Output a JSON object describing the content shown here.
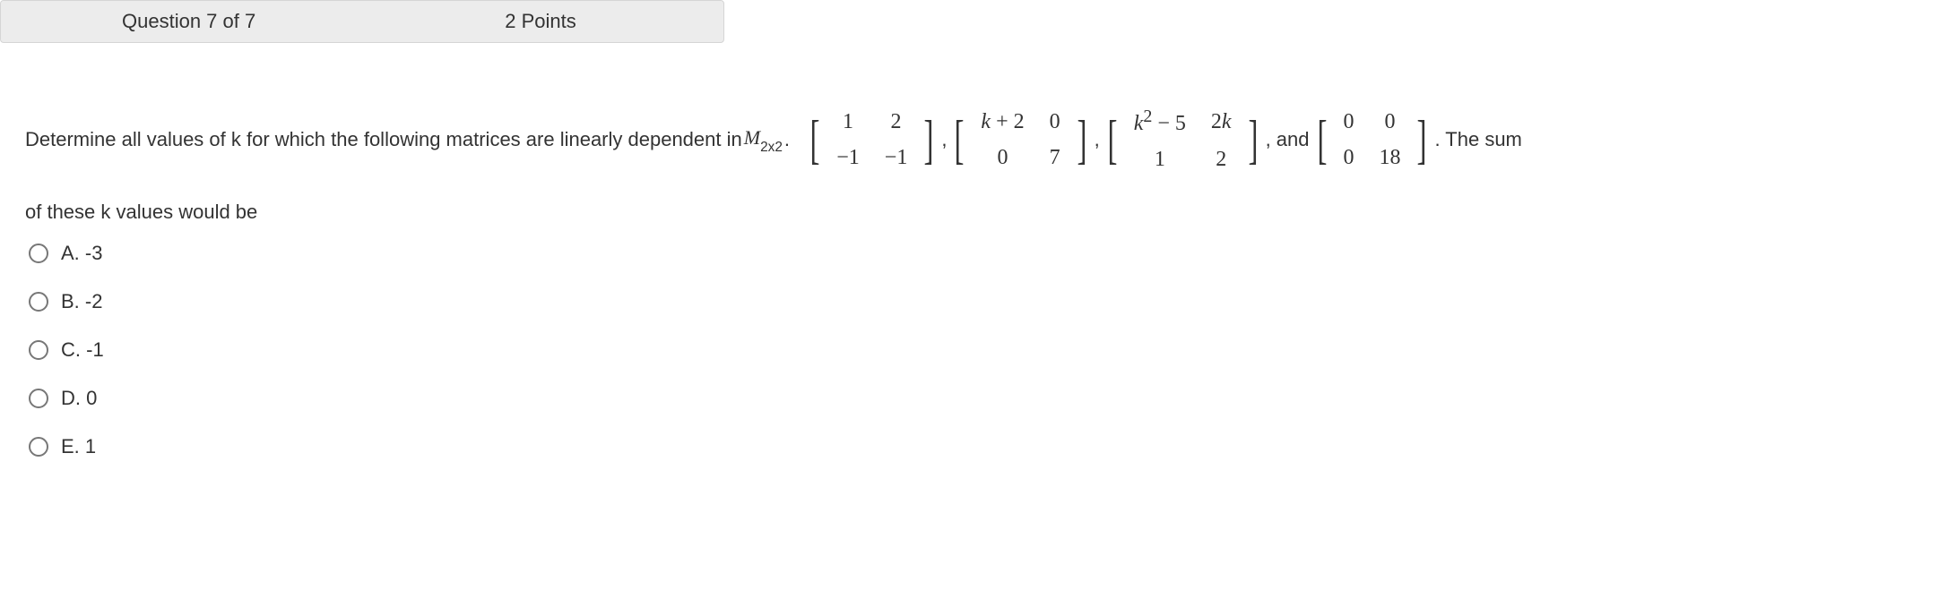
{
  "header": {
    "question_number": "Question 7 of 7",
    "points": "2 Points"
  },
  "question": {
    "intro": "Determine all values of k for which the following matrices are linearly dependent in ",
    "space_symbol": "M",
    "space_sub": "2x2",
    "dot": ".",
    "matrices": {
      "m1": {
        "r1c1": "1",
        "r1c2": "2",
        "r2c1": "−1",
        "r2c2": "−1"
      },
      "m2": {
        "r1c1_pre": "k",
        "r1c1_post": " + 2",
        "r1c2": "0",
        "r2c1": "0",
        "r2c2": "7"
      },
      "m3": {
        "r1c1_pre": "k",
        "r1c1_sup": "2",
        "r1c1_post": " − 5",
        "r1c2_pre": "2",
        "r1c2_var": "k",
        "r2c1": "1",
        "r2c2": "2"
      },
      "m4": {
        "r1c1": "0",
        "r1c2": "0",
        "r2c1": "0",
        "r2c2": "18"
      }
    },
    "sep_comma": ", ",
    "and_word": ", and ",
    "tail": ". The sum",
    "line2": "of these k values would be"
  },
  "options": {
    "a": "A. -3",
    "b": "B. -2",
    "c": "C. -1",
    "d": "D. 0",
    "e": "E. 1"
  }
}
